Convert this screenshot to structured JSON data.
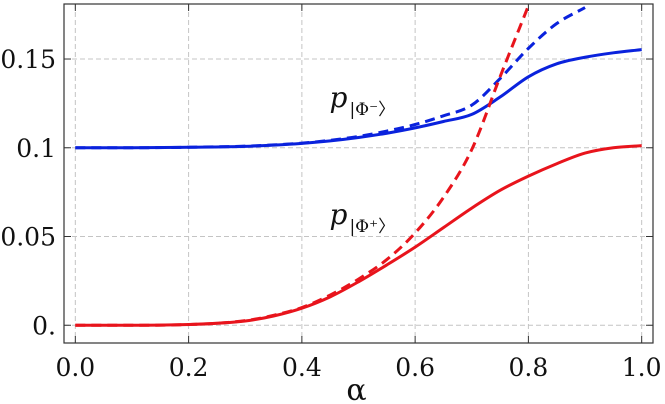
{
  "chart_data": {
    "type": "line",
    "xlabel": "α",
    "ylabel": "",
    "xlim": [
      -0.02,
      1.02
    ],
    "ylim": [
      -0.01,
      0.181
    ],
    "x_ticks": [
      0.0,
      0.2,
      0.4,
      0.6,
      0.8,
      1.0
    ],
    "x_tick_labels": [
      "0.0",
      "0.2",
      "0.4",
      "0.6",
      "0.8",
      "1.0"
    ],
    "y_ticks": [
      0.0,
      0.05,
      0.1,
      0.15
    ],
    "y_tick_labels": [
      "0.",
      "0.05",
      "0.1",
      "0.15"
    ],
    "grid": true,
    "x": [
      0.0,
      0.1,
      0.2,
      0.3,
      0.35,
      0.4,
      0.45,
      0.5,
      0.55,
      0.6,
      0.65,
      0.7,
      0.75,
      0.8,
      0.85,
      0.9,
      0.95,
      1.0
    ],
    "series": [
      {
        "color": "#0a22dd",
        "dashed": false,
        "values": [
          0.1,
          0.1,
          0.1003,
          0.1008,
          0.1015,
          0.1025,
          0.1039,
          0.1058,
          0.1082,
          0.1112,
          0.1148,
          0.1188,
          0.1286,
          0.14,
          0.1473,
          0.151,
          0.1535,
          0.1553
        ]
      },
      {
        "color": "#0a22dd",
        "dashed": true,
        "values": [
          0.1,
          0.1,
          0.1003,
          0.1009,
          0.1016,
          0.1026,
          0.1042,
          0.1064,
          0.1094,
          0.1131,
          0.118,
          0.124,
          0.139,
          0.156,
          0.17,
          0.179,
          null,
          null
        ]
      },
      {
        "color": "#e8141c",
        "dashed": false,
        "values": [
          0.0,
          0.0,
          0.0004,
          0.0024,
          0.0052,
          0.0096,
          0.016,
          0.0245,
          0.034,
          0.044,
          0.055,
          0.066,
          0.076,
          0.084,
          0.091,
          0.097,
          0.1,
          0.1012
        ]
      },
      {
        "color": "#e8141c",
        "dashed": true,
        "values": [
          0.0,
          0.0,
          0.0004,
          0.0026,
          0.0056,
          0.01,
          0.017,
          0.026,
          0.037,
          0.052,
          0.072,
          0.099,
          0.14,
          0.18,
          null,
          null,
          null,
          null
        ]
      }
    ],
    "annotations": [
      {
        "text": "p",
        "sub": "|Φ⁻〉",
        "x": 0.47,
        "y": 0.123
      },
      {
        "text": "p",
        "sub": "|Φ⁺〉",
        "x": 0.47,
        "y": 0.057
      }
    ]
  }
}
